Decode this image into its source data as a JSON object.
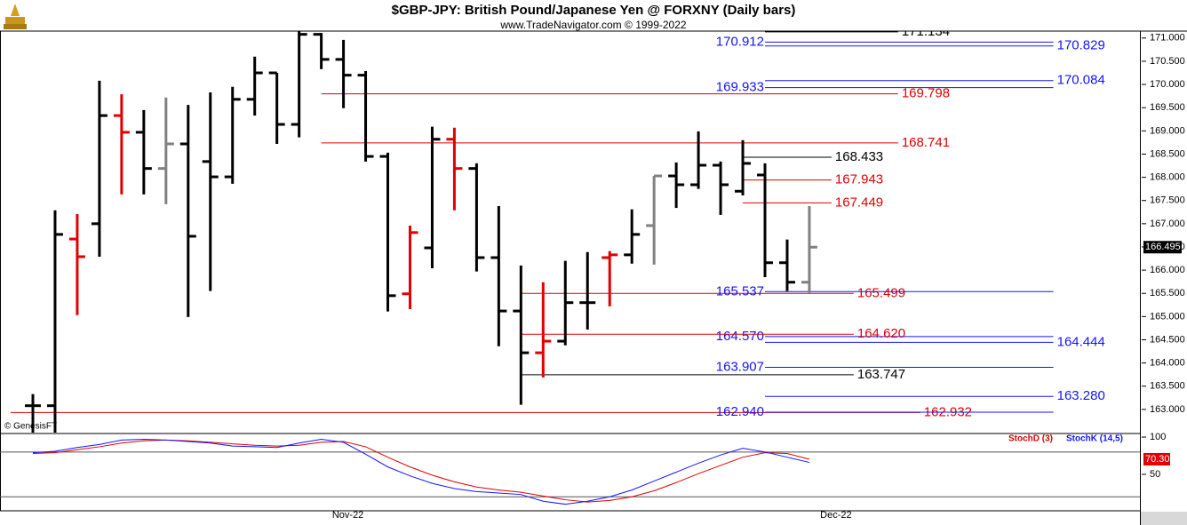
{
  "chart_data": [
    {
      "type": "ohlc",
      "title": "$GBP-JPY:  British Pound/Japanese Yen @ FORXNY  (Daily bars)",
      "subtitle": "www.TradeNavigator.com © 1999-2022",
      "watermark": "© GenesisFT",
      "categories": [
        null,
        null,
        null,
        null,
        null,
        null,
        null,
        null,
        null,
        null,
        null,
        null,
        null,
        null,
        "Nov-22",
        null,
        null,
        null,
        null,
        null,
        null,
        null,
        null,
        null,
        null,
        null,
        null,
        null,
        null,
        null,
        null,
        null,
        null,
        null,
        null,
        null,
        "Dec-22"
      ],
      "open": [
        163.08,
        163.08,
        166.67,
        167.0,
        169.33,
        168.97,
        168.19,
        168.72,
        168.34,
        168.01,
        169.68,
        170.25,
        169.14,
        171.08,
        170.54,
        170.2,
        168.45,
        165.49,
        166.48,
        168.82,
        168.19,
        166.27,
        165.12,
        164.22,
        164.47,
        165.3,
        166.27,
        166.33,
        166.96,
        168.03,
        167.84,
        168.26,
        167.7,
        168.05,
        166.16,
        165.74,
        null
      ],
      "high": [
        163.33,
        167.29,
        167.21,
        170.08,
        169.79,
        169.45,
        169.72,
        169.56,
        169.83,
        169.95,
        170.6,
        170.25,
        171.15,
        171.11,
        170.96,
        170.29,
        168.53,
        166.96,
        169.09,
        169.07,
        168.3,
        167.38,
        166.1,
        165.74,
        166.2,
        166.39,
        166.41,
        167.31,
        168.03,
        168.32,
        168.99,
        168.34,
        168.8,
        168.3,
        166.66,
        167.38,
        null
      ],
      "low": [
        162.4,
        162.4,
        165.03,
        166.29,
        167.63,
        167.63,
        167.42,
        164.99,
        165.55,
        167.86,
        169.33,
        168.72,
        168.86,
        170.33,
        169.49,
        168.34,
        165.11,
        165.16,
        166.04,
        167.29,
        165.97,
        164.36,
        163.1,
        163.69,
        164.38,
        164.72,
        165.22,
        166.14,
        166.12,
        167.34,
        167.75,
        167.19,
        167.61,
        165.85,
        165.55,
        165.51,
        null
      ],
      "close": [
        163.08,
        166.77,
        166.29,
        169.33,
        168.97,
        168.19,
        168.72,
        166.73,
        168.01,
        169.68,
        170.25,
        169.14,
        171.08,
        170.54,
        170.2,
        168.45,
        165.45,
        166.81,
        168.82,
        168.19,
        166.27,
        165.12,
        164.22,
        164.47,
        165.3,
        165.3,
        166.33,
        166.77,
        168.03,
        167.84,
        168.26,
        167.84,
        168.3,
        166.16,
        165.74,
        166.495,
        null
      ],
      "colors": [
        "#000000",
        "#000000",
        "#e00000",
        "#000000",
        "#e00000",
        "#000000",
        "#808080",
        "#000000",
        "#000000",
        "#000000",
        "#000000",
        "#000000",
        "#000000",
        "#000000",
        "#000000",
        "#000000",
        "#000000",
        "#e00000",
        "#000000",
        "#e00000",
        "#000000",
        "#000000",
        "#000000",
        "#e00000",
        "#000000",
        "#000000",
        "#e00000",
        "#000000",
        "#808080",
        "#000000",
        "#000000",
        "#000000",
        "#000000",
        "#000000",
        "#000000",
        "#808080",
        null
      ],
      "ylim": [
        162.5,
        171.15
      ],
      "yticks": [
        {
          "value": 163,
          "label": "163.000"
        },
        {
          "value": 163.5,
          "label": "163.500"
        },
        {
          "value": 164,
          "label": "164.000"
        },
        {
          "value": 164.5,
          "label": "164.500"
        },
        {
          "value": 165,
          "label": "165.000"
        },
        {
          "value": 165.5,
          "label": "165.500"
        },
        {
          "value": 166,
          "label": "166.000"
        },
        {
          "value": 166.5,
          "label": "166.500"
        },
        {
          "value": 167,
          "label": "167.000"
        },
        {
          "value": 167.5,
          "label": "167.500"
        },
        {
          "value": 168,
          "label": "168.000"
        },
        {
          "value": 168.5,
          "label": "168.500"
        },
        {
          "value": 169,
          "label": "169.000"
        },
        {
          "value": 169.5,
          "label": "169.500"
        },
        {
          "value": 170,
          "label": "170.000"
        },
        {
          "value": 170.5,
          "label": "170.500"
        },
        {
          "value": 171,
          "label": "171.000"
        }
      ],
      "last_price": 166.495,
      "levels": [
        {
          "value": 162.932,
          "color": "#e00000",
          "from": -1,
          "to": 40,
          "side": "right"
        },
        {
          "value": 162.94,
          "label": "162.940",
          "color": "#1414ff",
          "from": 33,
          "to": 46,
          "side": "left"
        },
        {
          "value": 163.28,
          "label": "163.280",
          "color": "#1414ff",
          "from": 33,
          "to": 46,
          "side": "right"
        },
        {
          "value": 163.747,
          "color": "#000000",
          "from": 22,
          "to": 37,
          "side": "right"
        },
        {
          "value": 163.907,
          "color": "#1414ff",
          "from": 33,
          "to": 46,
          "side": "left"
        },
        {
          "value": 164.444,
          "color": "#1414ff",
          "from": 33,
          "to": 46,
          "side": "right"
        },
        {
          "value": 164.57,
          "label": "164.570",
          "color": "#1414ff",
          "from": 33,
          "to": 46,
          "side": "left"
        },
        {
          "value": 164.62,
          "label": "164.620",
          "color": "#e00000",
          "from": 22,
          "to": 37,
          "side": "right"
        },
        {
          "value": 165.499,
          "color": "#e00000",
          "from": 22,
          "to": 37,
          "side": "right"
        },
        {
          "value": 165.537,
          "color": "#1414ff",
          "from": 33,
          "to": 46,
          "side": "left"
        },
        {
          "value": 167.449,
          "color": "#e00000",
          "from": 32,
          "to": 36,
          "side": "right"
        },
        {
          "value": 167.943,
          "color": "#e00000",
          "from": 32,
          "to": 36,
          "side": "right"
        },
        {
          "value": 168.433,
          "color": "#000000",
          "from": 32,
          "to": 36,
          "side": "right"
        },
        {
          "value": 168.741,
          "color": "#e00000",
          "from": 13,
          "to": 39,
          "side": "right"
        },
        {
          "value": 169.798,
          "color": "#e00000",
          "from": 13,
          "to": 39,
          "side": "right"
        },
        {
          "value": 169.933,
          "color": "#1414ff",
          "from": 33,
          "to": 46,
          "side": "left"
        },
        {
          "value": 170.084,
          "color": "#1414ff",
          "from": 33,
          "to": 46,
          "side": "right"
        },
        {
          "value": 170.829,
          "color": "#1414ff",
          "from": 33,
          "to": 46,
          "side": "right"
        },
        {
          "value": 170.912,
          "color": "#1414ff",
          "from": 33,
          "to": 46,
          "side": "left"
        },
        {
          "value": 171.134,
          "color": "#000000",
          "from": 33,
          "to": 39,
          "side": "right"
        }
      ]
    },
    {
      "type": "line",
      "ylim": [
        0,
        103
      ],
      "yticks": [
        50,
        100
      ],
      "levels": [
        80,
        20
      ],
      "series": [
        {
          "name": "StochD (3)",
          "color": "#e00000",
          "values": [
            78,
            79,
            83,
            87,
            92,
            95,
            96,
            95,
            93,
            91,
            89,
            88,
            89,
            93,
            94,
            87,
            73,
            60,
            49,
            40,
            33,
            29,
            26,
            21,
            16,
            13,
            15,
            20,
            28,
            39,
            51,
            62,
            73,
            79,
            78,
            70.3,
            null
          ]
        },
        {
          "name": "StochK (14,5)",
          "color": "#1414ff",
          "values": [
            79,
            81,
            86,
            90,
            96,
            97,
            96,
            94,
            92,
            88,
            87,
            86,
            92,
            97,
            93,
            77,
            60,
            48,
            38,
            31,
            27,
            25,
            23,
            14,
            10,
            14,
            20,
            29,
            41,
            53,
            65,
            76,
            85,
            80,
            73,
            66,
            null
          ]
        }
      ],
      "last_label": {
        "value": 70.3,
        "label": "70.30"
      }
    }
  ]
}
